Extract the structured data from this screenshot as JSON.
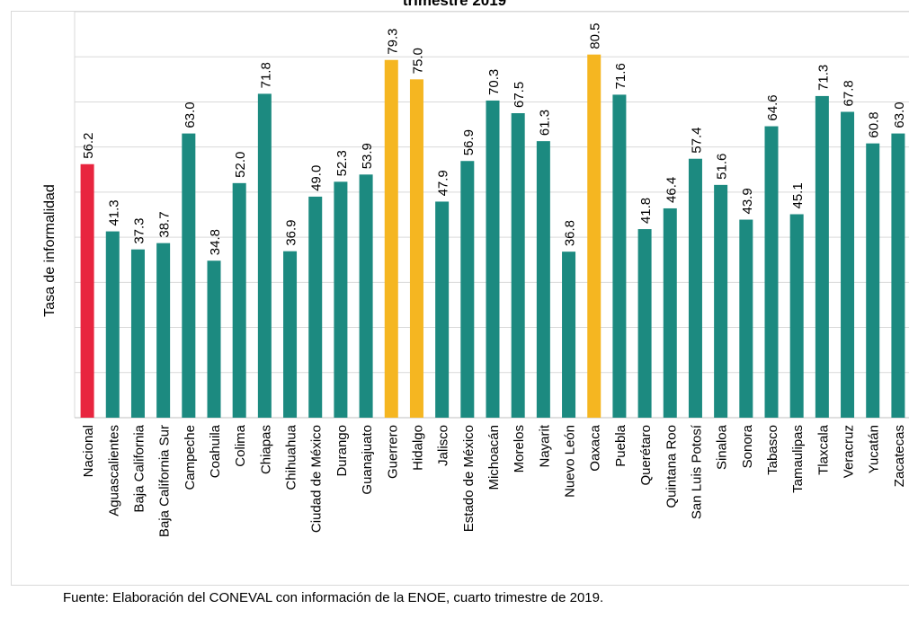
{
  "title_fragment": "trimestre 2019",
  "source_note": "Fuente: Elaboración del CONEVAL con información de la ENOE, cuarto trimestre de 2019.",
  "colors": {
    "nacional": "#e8253f",
    "highlight": "#f5b621",
    "default": "#1c8a80",
    "grid": "#d9d9d9"
  },
  "chart_data": {
    "type": "bar",
    "title": "trimestre 2019",
    "xlabel": "",
    "ylabel": "Tasa de informalidad",
    "ylim": [
      0,
      90
    ],
    "grid": true,
    "categories": [
      "Nacional",
      "Aguascalientes",
      "Baja California",
      "Baja California Sur",
      "Campeche",
      "Coahuila",
      "Colima",
      "Chiapas",
      "Chihuahua",
      "Ciudad de México",
      "Durango",
      "Guanajuato",
      "Guerrero",
      "Hidalgo",
      "Jalisco",
      "Estado de México",
      "Michoacán",
      "Morelos",
      "Nayarit",
      "Nuevo León",
      "Oaxaca",
      "Puebla",
      "Querétaro",
      "Quintana Roo",
      "San Luis Potosí",
      "Sinaloa",
      "Sonora",
      "Tabasco",
      "Tamaulipas",
      "Tlaxcala",
      "Veracruz",
      "Yucatán",
      "Zacatecas"
    ],
    "values": [
      56.2,
      41.3,
      37.3,
      38.7,
      63.0,
      34.8,
      52.0,
      71.8,
      36.9,
      49.0,
      52.3,
      53.9,
      79.3,
      75.0,
      47.9,
      56.9,
      70.3,
      67.5,
      61.3,
      36.8,
      80.5,
      71.6,
      41.8,
      46.4,
      57.4,
      51.6,
      43.9,
      64.6,
      45.1,
      71.3,
      67.8,
      60.8,
      63.0
    ],
    "data_labels": [
      "56.2",
      "41.3",
      "37.3",
      "38.7",
      "63.0",
      "34.8",
      "52.0",
      "71.8",
      "36.9",
      "49.0",
      "52.3",
      "53.9",
      "79.3",
      "75.0",
      "47.9",
      "56.9",
      "70.3",
      "67.5",
      "61.3",
      "36.8",
      "80.5",
      "71.6",
      "41.8",
      "46.4",
      "57.4",
      "51.6",
      "43.9",
      "64.6",
      "45.1",
      "71.3",
      "67.8",
      "60.8",
      "63.0"
    ],
    "bar_colors": [
      "nacional",
      "default",
      "default",
      "default",
      "default",
      "default",
      "default",
      "default",
      "default",
      "default",
      "default",
      "default",
      "highlight",
      "highlight",
      "default",
      "default",
      "default",
      "default",
      "default",
      "default",
      "highlight",
      "default",
      "default",
      "default",
      "default",
      "default",
      "default",
      "default",
      "default",
      "default",
      "default",
      "default",
      "default"
    ]
  }
}
